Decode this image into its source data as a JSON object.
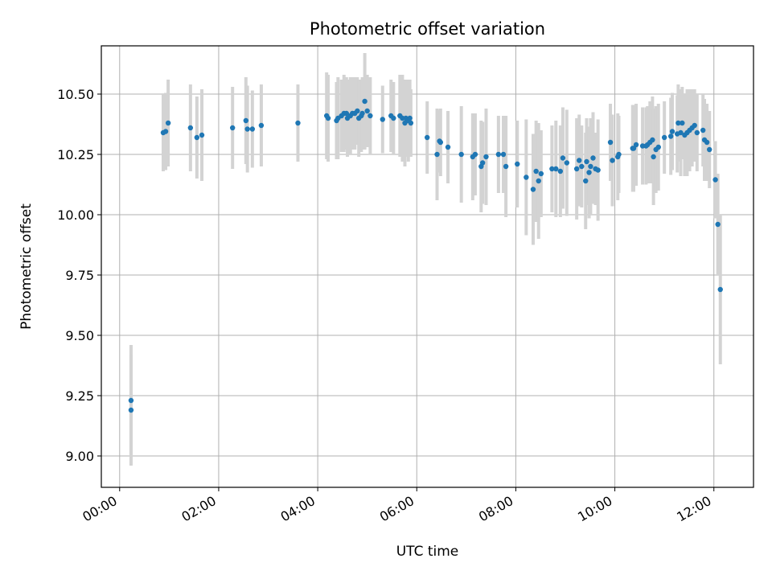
{
  "chart_data": {
    "type": "scatter",
    "title": "Photometric offset variation",
    "xlabel": "UTC time",
    "ylabel": "Photometric offset",
    "x_unit": "hours",
    "xlim": [
      -0.37,
      12.8
    ],
    "ylim": [
      8.87,
      10.7
    ],
    "xticks": [
      0,
      2,
      4,
      6,
      8,
      10,
      12
    ],
    "xtick_labels": [
      "00:00",
      "02:00",
      "04:00",
      "06:00",
      "08:00",
      "10:00",
      "12:00"
    ],
    "yticks": [
      9.0,
      9.25,
      9.5,
      9.75,
      10.0,
      10.25,
      10.5
    ],
    "ytick_labels": [
      "9.00",
      "9.25",
      "9.50",
      "9.75",
      "10.00",
      "10.25",
      "10.50"
    ],
    "grid": true,
    "marker_color": "#1f77b4",
    "errorbar_color": "#d3d3d3",
    "x": [
      0.23,
      0.23,
      0.88,
      0.93,
      0.98,
      1.43,
      1.56,
      1.66,
      2.28,
      2.55,
      2.58,
      2.68,
      2.86,
      3.6,
      4.18,
      4.21,
      4.38,
      4.41,
      4.48,
      4.53,
      4.58,
      4.6,
      4.66,
      4.7,
      4.75,
      4.8,
      4.83,
      4.88,
      4.9,
      4.95,
      5.0,
      5.06,
      5.31,
      5.48,
      5.53,
      5.66,
      5.71,
      5.76,
      5.78,
      5.83,
      5.86,
      5.88,
      6.21,
      6.41,
      6.46,
      6.48,
      6.63,
      6.9,
      7.13,
      7.18,
      7.3,
      7.33,
      7.4,
      7.65,
      7.75,
      7.8,
      8.03,
      8.21,
      8.35,
      8.41,
      8.46,
      8.51,
      8.73,
      8.81,
      8.9,
      8.95,
      9.03,
      9.23,
      9.28,
      9.33,
      9.41,
      9.43,
      9.48,
      9.51,
      9.56,
      9.61,
      9.66,
      9.91,
      9.95,
      10.06,
      10.08,
      10.36,
      10.38,
      10.43,
      10.56,
      10.63,
      10.66,
      10.71,
      10.76,
      10.78,
      10.83,
      10.88,
      11.0,
      11.13,
      11.16,
      11.26,
      11.28,
      11.33,
      11.36,
      11.41,
      11.46,
      11.51,
      11.56,
      11.61,
      11.66,
      11.78,
      11.81,
      11.86,
      11.91,
      12.03,
      12.08,
      12.13
    ],
    "y": [
      9.19,
      9.23,
      10.34,
      10.345,
      10.38,
      10.36,
      10.32,
      10.33,
      10.36,
      10.39,
      10.355,
      10.355,
      10.37,
      10.38,
      10.41,
      10.4,
      10.39,
      10.4,
      10.41,
      10.42,
      10.42,
      10.4,
      10.41,
      10.42,
      10.42,
      10.43,
      10.4,
      10.41,
      10.42,
      10.47,
      10.43,
      10.41,
      10.395,
      10.41,
      10.4,
      10.41,
      10.4,
      10.38,
      10.4,
      10.39,
      10.4,
      10.38,
      10.32,
      10.25,
      10.305,
      10.3,
      10.28,
      10.25,
      10.24,
      10.25,
      10.2,
      10.215,
      10.24,
      10.25,
      10.25,
      10.2,
      10.21,
      10.155,
      10.105,
      10.18,
      10.14,
      10.17,
      10.19,
      10.19,
      10.18,
      10.235,
      10.215,
      10.19,
      10.225,
      10.2,
      10.14,
      10.22,
      10.175,
      10.2,
      10.235,
      10.19,
      10.185,
      10.3,
      10.225,
      10.24,
      10.25,
      10.275,
      10.275,
      10.29,
      10.285,
      10.285,
      10.29,
      10.3,
      10.31,
      10.24,
      10.27,
      10.28,
      10.32,
      10.325,
      10.345,
      10.335,
      10.38,
      10.34,
      10.38,
      10.33,
      10.34,
      10.35,
      10.36,
      10.37,
      10.34,
      10.35,
      10.31,
      10.3,
      10.27,
      10.145,
      9.96,
      9.69
    ],
    "yerr": [
      0.23,
      0.23,
      0.16,
      0.16,
      0.18,
      0.18,
      0.17,
      0.19,
      0.17,
      0.18,
      0.18,
      0.16,
      0.17,
      0.16,
      0.18,
      0.18,
      0.16,
      0.17,
      0.15,
      0.16,
      0.15,
      0.16,
      0.16,
      0.15,
      0.15,
      0.14,
      0.16,
      0.15,
      0.15,
      0.2,
      0.15,
      0.16,
      0.14,
      0.15,
      0.15,
      0.17,
      0.18,
      0.18,
      0.16,
      0.17,
      0.16,
      0.14,
      0.15,
      0.19,
      0.13,
      0.14,
      0.15,
      0.2,
      0.18,
      0.17,
      0.19,
      0.17,
      0.2,
      0.16,
      0.16,
      0.21,
      0.18,
      0.24,
      0.23,
      0.21,
      0.24,
      0.18,
      0.18,
      0.2,
      0.19,
      0.21,
      0.22,
      0.21,
      0.19,
      0.17,
      0.2,
      0.18,
      0.19,
      0.2,
      0.19,
      0.15,
      0.21,
      0.16,
      0.19,
      0.18,
      0.16,
      0.18,
      0.18,
      0.17,
      0.16,
      0.16,
      0.16,
      0.17,
      0.18,
      0.2,
      0.18,
      0.18,
      0.15,
      0.16,
      0.16,
      0.16,
      0.16,
      0.18,
      0.15,
      0.17,
      0.18,
      0.17,
      0.16,
      0.15,
      0.16,
      0.15,
      0.17,
      0.16,
      0.16,
      0.16,
      0.21,
      0.31
    ]
  }
}
